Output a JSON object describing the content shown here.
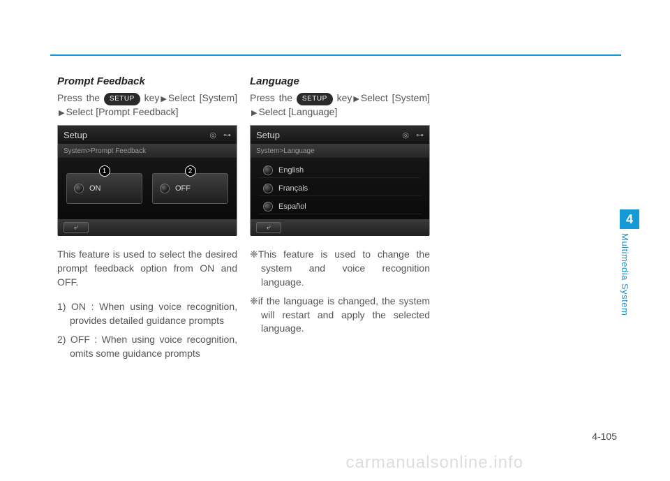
{
  "page": {
    "rule_color": "#1599d6",
    "page_number": "4-105",
    "watermark": "carmanualsonline.info"
  },
  "side_tab": {
    "number": "4",
    "label": "Multimedia System",
    "bg_color": "#1599d6"
  },
  "setup_key_label": "SETUP",
  "left": {
    "heading": "Prompt Feedback",
    "instr_parts": {
      "p1": "Press   the",
      "p2": "key",
      "p3": "Select [System]",
      "p4": "Select [Prompt Feedback]"
    },
    "screen": {
      "title": "Setup",
      "breadcrumb": "System>Prompt Feedback",
      "options": [
        {
          "badge": "1",
          "label": "ON"
        },
        {
          "badge": "2",
          "label": "OFF"
        }
      ]
    },
    "body": "This feature is used to select the desired prompt feedback option from ON and OFF.",
    "list": [
      "1) ON : When using voice recognition, provides detailed guidance prompts",
      "2) OFF : When using voice recognition, omits some guidance prompts"
    ]
  },
  "right": {
    "heading": "Language",
    "instr_parts": {
      "p1": "Press   the",
      "p2": "key",
      "p3": "Select [System]",
      "p4": "Select [Language]"
    },
    "screen": {
      "title": "Setup",
      "breadcrumb": "System>Language",
      "languages": [
        "English",
        "Français",
        "Español"
      ]
    },
    "bullets": [
      "❈This feature is used to change the system and voice recognition language.",
      "❈if the language is changed, the system will restart and apply the selected language."
    ]
  }
}
